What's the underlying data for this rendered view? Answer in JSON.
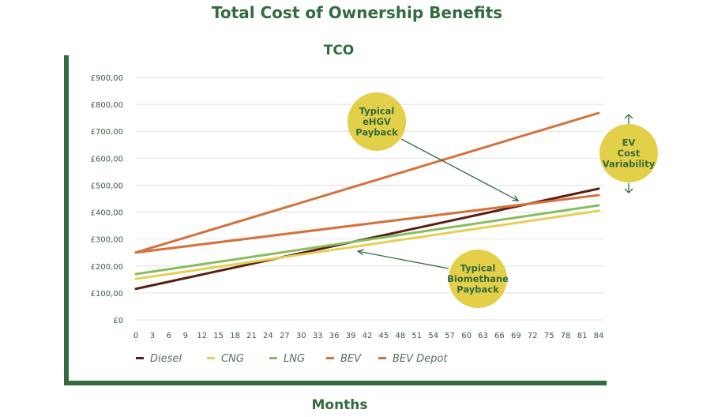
{
  "page": {
    "title": "Total Cost of Ownership Benefits"
  },
  "chart_data": {
    "type": "line",
    "title": "TCO",
    "xlabel": "Months",
    "ylabel": "",
    "x": [
      0,
      84
    ],
    "xticks": [
      0,
      3,
      6,
      9,
      12,
      15,
      18,
      21,
      24,
      27,
      30,
      33,
      36,
      39,
      42,
      45,
      48,
      51,
      54,
      57,
      60,
      63,
      66,
      69,
      72,
      75,
      78,
      81,
      84
    ],
    "yticks": [
      0,
      100,
      200,
      300,
      400,
      500,
      600,
      700,
      800,
      900
    ],
    "ytick_labels": [
      "£0",
      "£100,00",
      "£200,00",
      "£300,00",
      "£400,00",
      "£500,00",
      "£600,00",
      "£700,00",
      "£800,00",
      "£900,00"
    ],
    "xlim": [
      0,
      84
    ],
    "ylim": [
      0,
      900
    ],
    "grid": true,
    "legend_position": "bottom-left",
    "series": [
      {
        "name": "Diesel",
        "color": "#5a1f14",
        "values": [
          115,
          487
        ]
      },
      {
        "name": "CNG",
        "color": "#e6cf55",
        "values": [
          152,
          405
        ]
      },
      {
        "name": "LNG",
        "color": "#86bd5f",
        "values": [
          170,
          425
        ]
      },
      {
        "name": "BEV",
        "color": "#d4713d",
        "values": [
          250,
          768
        ]
      },
      {
        "name": "BEV Depot",
        "color": "#d4713d",
        "values": [
          250,
          463
        ]
      }
    ],
    "annotations": [
      {
        "id": "ehgv",
        "lines": [
          "Typical",
          "eHGV",
          "Payback"
        ],
        "target_month": 70,
        "target_value": 448,
        "color": "#e3cf48"
      },
      {
        "id": "biomethane",
        "lines": [
          "Typical",
          "Biomethane",
          "Payback"
        ],
        "target_month": 40,
        "target_value": 290,
        "color": "#e3cf48"
      },
      {
        "id": "ev-variability",
        "lines": [
          "EV",
          "Cost",
          "Variability"
        ],
        "color": "#e3cf48"
      }
    ]
  }
}
